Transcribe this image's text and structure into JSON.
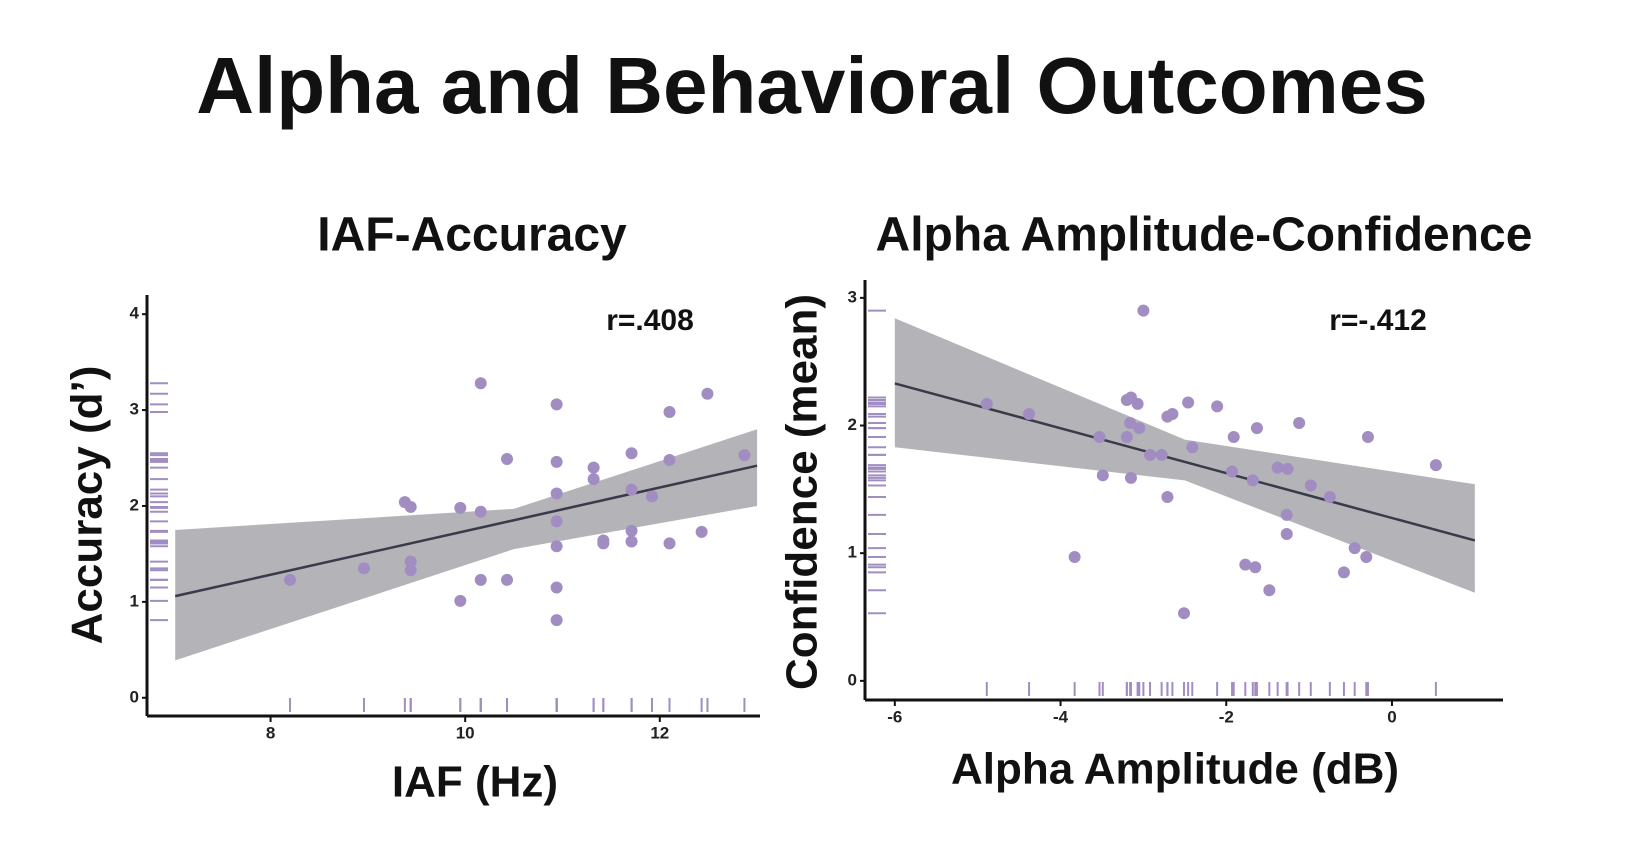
{
  "title": "Alpha and Behavioral Outcomes",
  "chart_data": [
    {
      "type": "scatter",
      "title": "IAF-Accuracy",
      "x_label": "IAF (Hz)",
      "y_label": "Accuracy (d’)",
      "annotation": "r=.408",
      "x": [
        8.2,
        8.96,
        9.38,
        9.44,
        9.44,
        9.44,
        9.95,
        9.95,
        10.16,
        10.16,
        10.16,
        10.43,
        10.43,
        10.94,
        10.94,
        10.94,
        10.94,
        10.94,
        10.94,
        10.94,
        11.32,
        11.32,
        11.42,
        11.42,
        11.71,
        11.71,
        11.71,
        11.71,
        11.92,
        12.1,
        12.1,
        12.1,
        12.43,
        12.49,
        12.87
      ],
      "y": [
        1.23,
        1.35,
        2.04,
        1.99,
        1.42,
        1.33,
        1.98,
        1.01,
        3.28,
        1.94,
        1.23,
        2.49,
        1.23,
        3.06,
        2.46,
        2.13,
        1.84,
        1.58,
        1.15,
        0.81,
        2.4,
        2.28,
        1.64,
        1.61,
        2.55,
        2.17,
        1.74,
        1.63,
        2.1,
        2.98,
        2.48,
        1.61,
        1.73,
        3.17,
        2.53
      ],
      "color": "#a18dc2",
      "xlim": [
        6.73,
        13.03
      ],
      "ylim": [
        -0.19,
        4.2
      ],
      "xticks": [
        8,
        10,
        12
      ],
      "yticks": [
        0,
        1,
        2,
        3,
        4
      ],
      "fit": {
        "x": [
          7.02,
          13.0
        ],
        "y": [
          1.06,
          2.42
        ],
        "color": "#3a3a4a"
      },
      "band": {
        "x": [
          7.02,
          10.5,
          13.0
        ],
        "upper": [
          1.75,
          1.97,
          2.8
        ],
        "lower": [
          0.39,
          1.55,
          2.0
        ],
        "color": "#a7a7ab"
      },
      "rug": true
    },
    {
      "type": "scatter",
      "title": "Alpha Amplitude-Confidence",
      "x_label": "Alpha Amplitude (dB)",
      "y_label": "Confidence (mean)",
      "annotation": "r=-.412",
      "x": [
        -3.0,
        -4.89,
        -4.38,
        -3.83,
        -3.53,
        -3.49,
        -3.2,
        -3.15,
        -3.07,
        -3.16,
        -3.2,
        -3.15,
        -2.92,
        -2.78,
        -3.05,
        -2.71,
        -2.65,
        -2.71,
        -2.46,
        -2.41,
        -2.51,
        -2.11,
        -1.91,
        -1.93,
        -1.77,
        -1.65,
        -1.63,
        -1.68,
        -1.48,
        -1.38,
        -1.26,
        -1.27,
        -1.27,
        -1.12,
        -0.98,
        -0.75,
        -0.58,
        -0.45,
        -0.31,
        -0.29,
        0.53
      ],
      "y": [
        2.9,
        2.17,
        2.09,
        0.97,
        1.91,
        1.61,
        2.2,
        2.22,
        2.17,
        2.02,
        1.91,
        1.59,
        1.77,
        1.77,
        1.98,
        2.07,
        2.09,
        1.44,
        2.18,
        1.83,
        0.53,
        2.15,
        1.91,
        1.64,
        0.91,
        0.89,
        1.98,
        1.57,
        0.71,
        1.67,
        1.66,
        1.3,
        1.15,
        2.02,
        1.53,
        1.44,
        0.85,
        1.04,
        0.97,
        1.91,
        1.69
      ],
      "color": "#a18dc2",
      "xlim": [
        -6.36,
        1.34
      ],
      "ylim": [
        -0.15,
        3.14
      ],
      "xticks": [
        -6,
        -4,
        -2,
        0
      ],
      "yticks": [
        0,
        1,
        2,
        3
      ],
      "fit": {
        "x": [
          -6.0,
          1.0
        ],
        "y": [
          2.33,
          1.1
        ],
        "color": "#3a3a4a"
      },
      "band": {
        "x": [
          -6.0,
          -2.5,
          1.0
        ],
        "upper": [
          2.84,
          1.89,
          1.54
        ],
        "lower": [
          1.83,
          1.57,
          0.69
        ],
        "color": "#a7a7ab"
      },
      "rug": true
    }
  ]
}
